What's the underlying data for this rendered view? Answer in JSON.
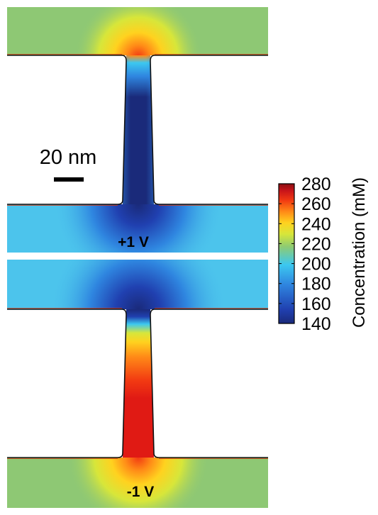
{
  "scale_bar": {
    "label": "20 nm"
  },
  "panels": [
    {
      "id": "top",
      "voltage_label": "+1 V"
    },
    {
      "id": "bottom",
      "voltage_label": "-1 V"
    }
  ],
  "colorbar": {
    "title": "Concentration (mM)",
    "ticks": [
      "280",
      "260",
      "240",
      "220",
      "200",
      "180",
      "160",
      "140"
    ],
    "min": 140,
    "max": 280,
    "colormap": "jet",
    "colors": [
      "#1a2a7a",
      "#2040b0",
      "#2f86e0",
      "#3cc8f0",
      "#8ecb72",
      "#d7e63a",
      "#ffd21f",
      "#ff8a17",
      "#f23a12",
      "#c8141a",
      "#8a0f12"
    ]
  }
}
